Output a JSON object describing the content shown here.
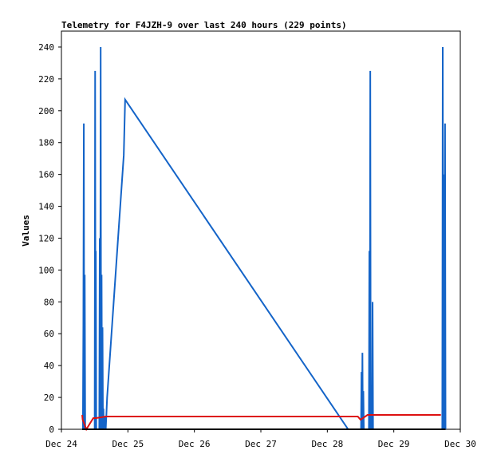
{
  "chart_data": {
    "type": "line",
    "title": "Telemetry for F4JZH-9 over last 240 hours (229 points)",
    "xlabel": "",
    "ylabel": "Values",
    "x_range": [
      "2024-12-24T00:00",
      "2024-12-30T00:00"
    ],
    "ylim": [
      0,
      250
    ],
    "y_ticks": [
      0,
      20,
      40,
      60,
      80,
      100,
      120,
      140,
      160,
      180,
      200,
      220,
      240
    ],
    "x_ticks": [
      {
        "t": "2024-12-24T00:00",
        "label": "Dec 24"
      },
      {
        "t": "2024-12-25T00:00",
        "label": "Dec 25"
      },
      {
        "t": "2024-12-26T00:00",
        "label": "Dec 26"
      },
      {
        "t": "2024-12-27T00:00",
        "label": "Dec 27"
      },
      {
        "t": "2024-12-28T00:00",
        "label": "Dec 28"
      },
      {
        "t": "2024-12-29T00:00",
        "label": "Dec 29"
      },
      {
        "t": "2024-12-30T00:00",
        "label": "Dec 30"
      }
    ],
    "grid": false,
    "legend": "none",
    "series": [
      {
        "color": "#1464c8",
        "points": [
          [
            "2024-12-24T07:45",
            0
          ],
          [
            "2024-12-24T07:55",
            65
          ],
          [
            "2024-12-24T08:05",
            192
          ],
          [
            "2024-12-24T08:15",
            0
          ],
          [
            "2024-12-24T08:25",
            97
          ],
          [
            "2024-12-24T08:35",
            0
          ],
          [
            "2024-12-24T12:00",
            0
          ],
          [
            "2024-12-24T12:10",
            225
          ],
          [
            "2024-12-24T12:20",
            0
          ],
          [
            "2024-12-24T12:25",
            112
          ],
          [
            "2024-12-24T12:35",
            0
          ],
          [
            "2024-12-24T13:40",
            0
          ],
          [
            "2024-12-24T13:50",
            120
          ],
          [
            "2024-12-24T14:00",
            0
          ],
          [
            "2024-12-24T14:10",
            240
          ],
          [
            "2024-12-24T14:20",
            0
          ],
          [
            "2024-12-24T14:30",
            97
          ],
          [
            "2024-12-24T14:40",
            0
          ],
          [
            "2024-12-24T14:50",
            64
          ],
          [
            "2024-12-24T15:00",
            0
          ],
          [
            "2024-12-24T15:10",
            13
          ],
          [
            "2024-12-24T15:20",
            0
          ],
          [
            "2024-12-24T15:40",
            8
          ],
          [
            "2024-12-24T16:00",
            0
          ],
          [
            "2024-12-24T16:30",
            20
          ],
          [
            "2024-12-24T22:30",
            172
          ],
          [
            "2024-12-24T23:00",
            207
          ],
          [
            "2024-12-28T07:30",
            0
          ],
          [
            "2024-12-28T12:10",
            0
          ],
          [
            "2024-12-28T12:20",
            36
          ],
          [
            "2024-12-28T12:30",
            0
          ],
          [
            "2024-12-28T12:40",
            48
          ],
          [
            "2024-12-28T12:50",
            0
          ],
          [
            "2024-12-28T13:00",
            24
          ],
          [
            "2024-12-28T13:10",
            0
          ],
          [
            "2024-12-28T15:00",
            0
          ],
          [
            "2024-12-28T15:10",
            112
          ],
          [
            "2024-12-28T15:20",
            0
          ],
          [
            "2024-12-28T15:30",
            225
          ],
          [
            "2024-12-28T15:40",
            0
          ],
          [
            "2024-12-28T16:10",
            0
          ],
          [
            "2024-12-28T16:20",
            80
          ],
          [
            "2024-12-28T16:30",
            0
          ],
          [
            "2024-12-28T16:40",
            0
          ],
          [
            "2024-12-29T17:30",
            0
          ],
          [
            "2024-12-29T17:40",
            240
          ],
          [
            "2024-12-29T17:50",
            0
          ],
          [
            "2024-12-29T18:00",
            160
          ],
          [
            "2024-12-29T18:10",
            0
          ],
          [
            "2024-12-29T18:30",
            192
          ],
          [
            "2024-12-29T18:40",
            0
          ]
        ]
      },
      {
        "color": "#dd1111",
        "points": [
          [
            "2024-12-24T07:30",
            9
          ],
          [
            "2024-12-24T07:40",
            6
          ],
          [
            "2024-12-24T09:00",
            0
          ],
          [
            "2024-12-24T11:30",
            7
          ],
          [
            "2024-12-24T12:30",
            7
          ],
          [
            "2024-12-24T16:00",
            8
          ],
          [
            "2024-12-28T11:00",
            8
          ],
          [
            "2024-12-28T12:00",
            6
          ],
          [
            "2024-12-28T14:30",
            9
          ],
          [
            "2024-12-29T17:00",
            9
          ]
        ]
      },
      {
        "color": "#000000",
        "points": [
          [
            "2024-12-24T07:30",
            0
          ],
          [
            "2024-12-29T18:40",
            0
          ]
        ]
      }
    ]
  }
}
